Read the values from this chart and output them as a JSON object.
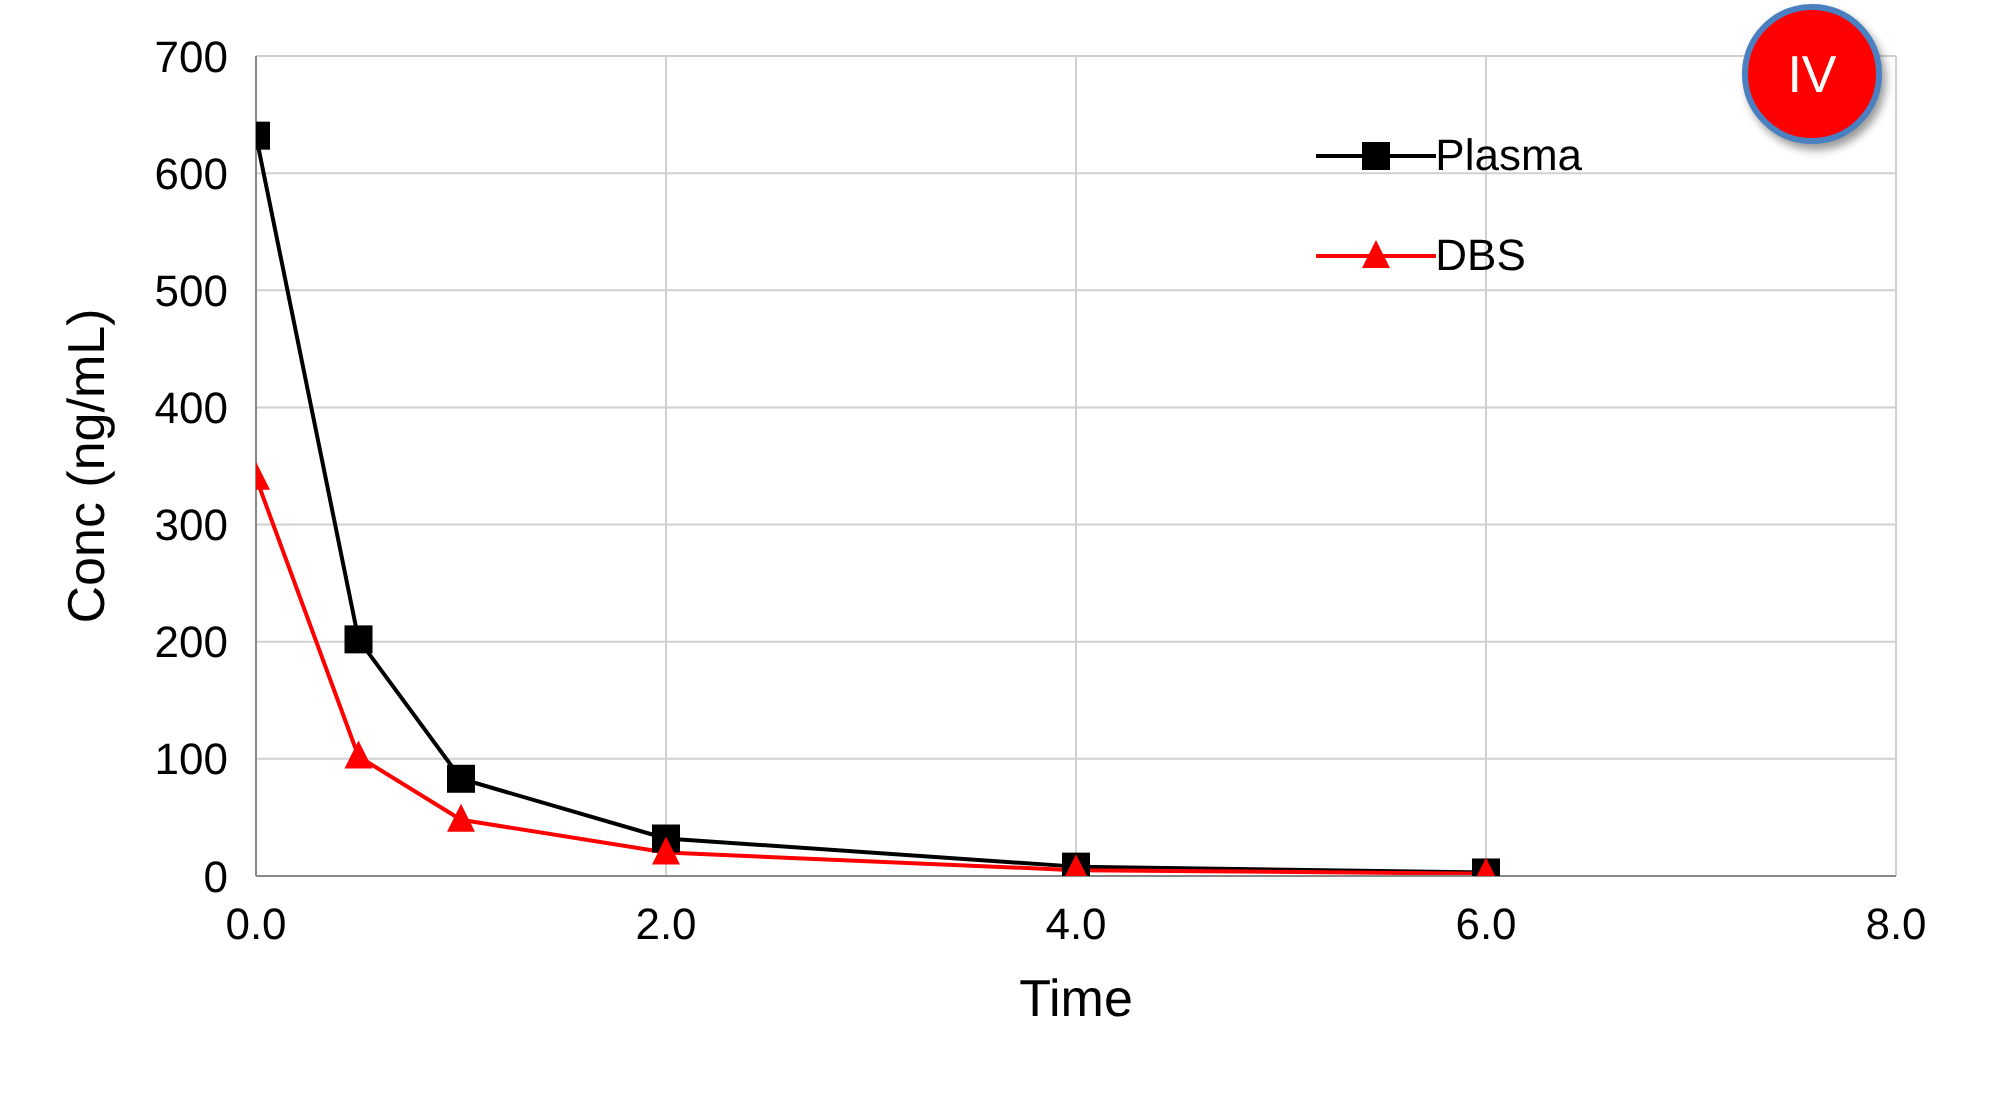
{
  "chart_data": {
    "type": "line",
    "xlabel": "Time",
    "ylabel": "Conc (ng/mL)",
    "annotations": [
      "IV"
    ],
    "xlim": [
      0,
      8
    ],
    "xticks": [
      {
        "value": 0,
        "label": "0.0"
      },
      {
        "value": 2,
        "label": "2.0"
      },
      {
        "value": 4,
        "label": "4.0"
      },
      {
        "value": 6,
        "label": "6.0"
      },
      {
        "value": 8,
        "label": "8.0"
      }
    ],
    "ylim": [
      0,
      700
    ],
    "yticks": [
      0,
      100,
      200,
      300,
      400,
      500,
      600,
      700
    ],
    "grid": true,
    "legend": "top right",
    "line_style": "solid",
    "series": [
      {
        "name": "Plasma",
        "color": "#000000",
        "marker": "square",
        "x": [
          0,
          0.5,
          1,
          2,
          4,
          6
        ],
        "values": [
          632,
          202,
          83,
          32,
          8,
          3
        ]
      },
      {
        "name": "DBS",
        "color": "#ff0000",
        "marker": "triangle",
        "x": [
          0,
          0.5,
          1,
          2,
          4,
          6
        ],
        "values": [
          340,
          102,
          48,
          20,
          5,
          2
        ]
      }
    ]
  }
}
